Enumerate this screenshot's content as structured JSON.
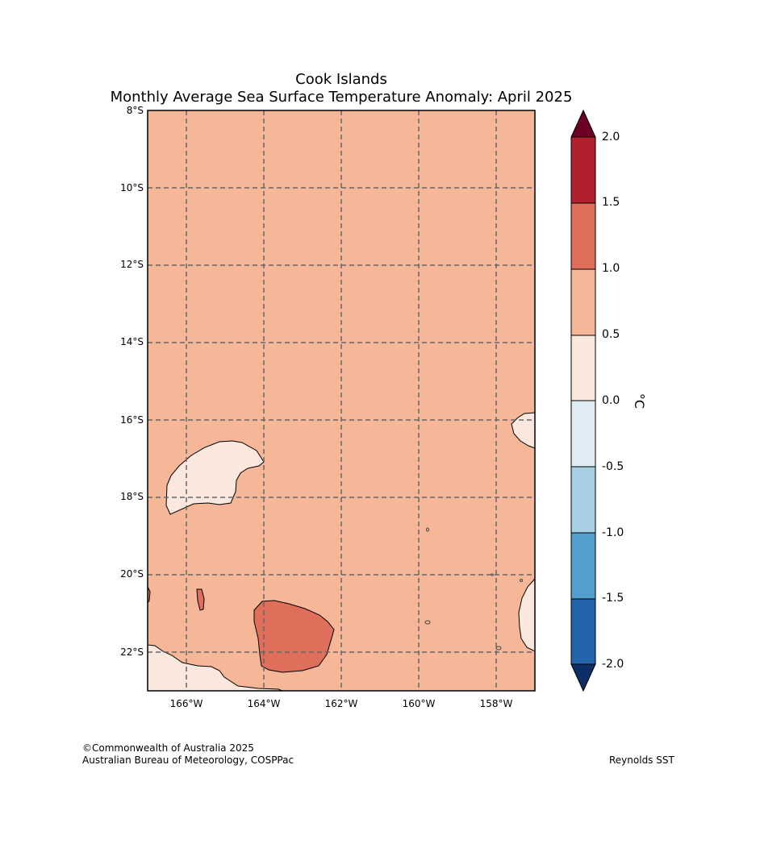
{
  "title": {
    "line1": "Cook Islands",
    "line2": "Monthly Average Sea Surface Temperature Anomaly: April 2025"
  },
  "map": {
    "lat_labels": [
      "8°S",
      "10°S",
      "12°S",
      "14°S",
      "16°S",
      "18°S",
      "20°S",
      "22°S"
    ],
    "lon_labels": [
      "166°W",
      "164°W",
      "162°W",
      "160°W",
      "158°W"
    ],
    "extent": {
      "lon_min": -167,
      "lon_max": -157,
      "lat_min": -23,
      "lat_max": -8
    },
    "background_anomaly_band": "0.5 to 1.0",
    "gridlines": "dashed"
  },
  "colorbar": {
    "unit": "°C",
    "tick_labels": [
      "2.0",
      "1.5",
      "1.0",
      "0.5",
      "0.0",
      "-0.5",
      "-1.0",
      "-1.5",
      "-2.0"
    ],
    "extend": "both",
    "colors_top_to_bottom": [
      "#b2202e",
      "#df6f5a",
      "#f5b797",
      "#fae7dd",
      "#e0ecf3",
      "#a8d0e5",
      "#529ecc",
      "#2265ab"
    ],
    "over_color": "#6b0022",
    "under_color": "#0c2f66"
  },
  "footer": {
    "copyright": "©Commonwealth of Australia 2025",
    "org": "Australian Bureau of Meteorology, COSPPac",
    "source": "Reynolds SST"
  }
}
